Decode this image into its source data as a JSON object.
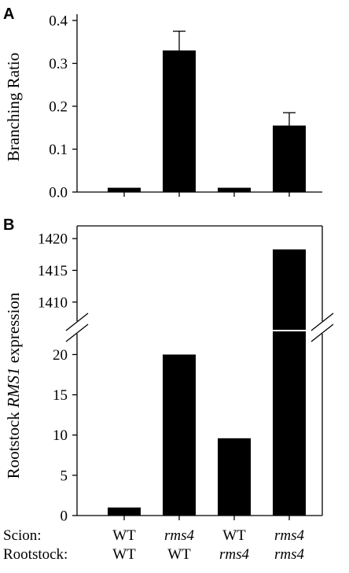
{
  "chart_data": [
    {
      "type": "bar",
      "panel_label": "A",
      "ylabel": "Branching Ratio",
      "ylim": [
        0,
        0.4
      ],
      "yticks": [
        "0.0",
        "0.1",
        "0.2",
        "0.3",
        "0.4"
      ],
      "values": [
        0.01,
        0.33,
        0.01,
        0.155
      ],
      "errors": [
        0,
        0.045,
        0,
        0.03
      ],
      "grid": false
    },
    {
      "type": "bar",
      "panel_label": "B",
      "ylabel_parts": [
        "Rootstock ",
        "RMS1",
        " expression"
      ],
      "broken_axis": true,
      "ylim_lower": [
        0,
        22
      ],
      "ylim_upper": [
        1407,
        1422
      ],
      "yticks_lower": [
        "0",
        "5",
        "10",
        "15",
        "20"
      ],
      "yticks_upper": [
        "1410",
        "1415",
        "1420"
      ],
      "values": [
        1,
        20,
        9.6,
        1418.3
      ],
      "grid": false
    }
  ],
  "categories": {
    "scion_label": "Scion:",
    "rootstock_label": "Rootstock:",
    "scion": [
      "WT",
      "rms4",
      "WT",
      "rms4"
    ],
    "rootstock": [
      "WT",
      "WT",
      "rms4",
      "rms4"
    ],
    "scion_italic": [
      false,
      true,
      false,
      true
    ],
    "rootstock_italic": [
      false,
      false,
      true,
      true
    ]
  }
}
